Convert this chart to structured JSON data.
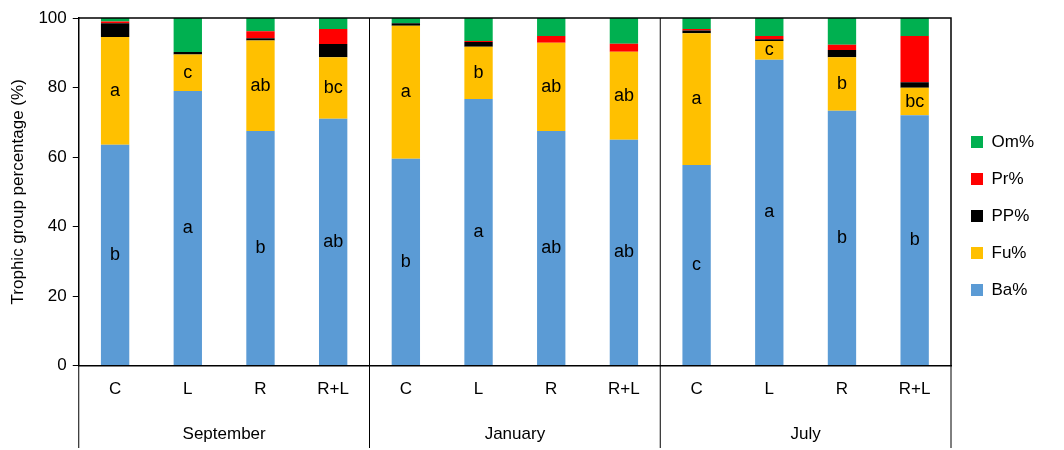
{
  "chart_data": {
    "type": "bar",
    "stacked": true,
    "ylabel": "Trophic group percentage (%)",
    "categories": [
      "C",
      "L",
      "R",
      "R+L",
      "C",
      "L",
      "R",
      "R+L",
      "C",
      "L",
      "R",
      "R+L"
    ],
    "series": [
      {
        "name": "Ba%",
        "color": "#5b9bd5",
        "values": [
          63.5,
          79,
          67.5,
          71,
          59.5,
          76.7,
          67.5,
          65,
          57.7,
          88,
          73.3,
          72
        ]
      },
      {
        "name": "Fu%",
        "color": "#ffc000",
        "values": [
          31,
          10.5,
          26,
          17.7,
          38.3,
          15,
          25.4,
          25.3,
          37.9,
          5.4,
          15.4,
          7.9
        ]
      },
      {
        "name": "PP%",
        "color": "#000000",
        "values": [
          4,
          0.7,
          0.7,
          3.8,
          0.7,
          1.4,
          0,
          0,
          0.8,
          0.5,
          2.1,
          1.6
        ]
      },
      {
        "name": "Pr%",
        "color": "#ff0000",
        "values": [
          0.5,
          0,
          2,
          4.3,
          0,
          0.3,
          1.9,
          2.3,
          0.4,
          0.9,
          1.5,
          13.3
        ]
      },
      {
        "name": "Om%",
        "color": "#00b050",
        "values": [
          1,
          9.8,
          3.8,
          3.2,
          1.5,
          6.6,
          5.2,
          7.4,
          3.2,
          5.2,
          7.7,
          5.2
        ]
      }
    ],
    "ylim": [
      0,
      100
    ],
    "yticks": [
      0,
      20,
      40,
      60,
      80,
      100
    ],
    "grid": false,
    "legend": "right",
    "annotations": [
      "a",
      "b",
      "c",
      "a",
      "ab",
      "b",
      "bc",
      "ab",
      "a",
      "b",
      "b",
      "a",
      "ab",
      "ab",
      "ab",
      "ab",
      "a",
      "c",
      "c",
      "a",
      "b",
      "b",
      "bc",
      "b",
      "September",
      "January",
      "July"
    ]
  }
}
